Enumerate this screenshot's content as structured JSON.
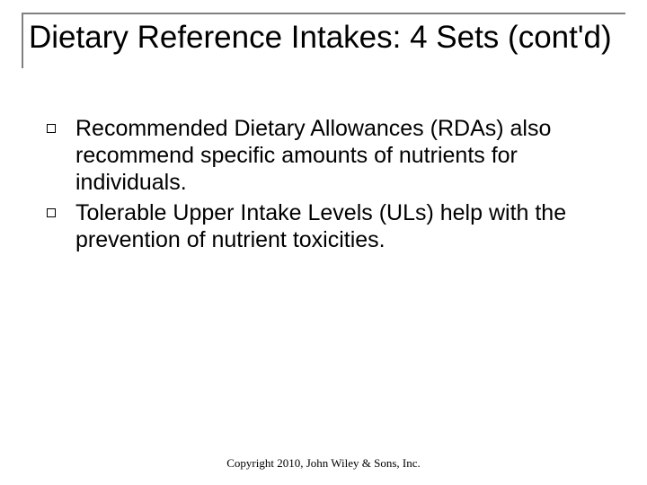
{
  "title": "Dietary Reference Intakes: 4 Sets (cont'd)",
  "bullets": [
    {
      "text": "Recommended Dietary Allowances (RDAs) also recommend specific amounts of nutrients for individuals."
    },
    {
      "text": "Tolerable Upper Intake Levels (ULs) help with the prevention of nutrient toxicities."
    }
  ],
  "footer": "Copyright 2010, John Wiley & Sons, Inc.",
  "colors": {
    "background": "#ffffff",
    "text": "#000000",
    "title_border": "#808080"
  },
  "typography": {
    "title_fontsize": 35,
    "body_fontsize": 25,
    "footer_fontsize": 13,
    "title_family": "Arial",
    "footer_family": "Times New Roman"
  },
  "layout": {
    "slide_width": 720,
    "slide_height": 540
  }
}
